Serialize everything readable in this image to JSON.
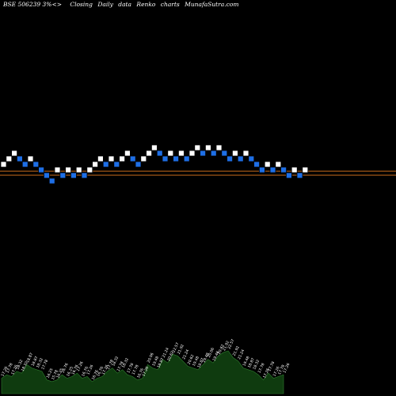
{
  "header": {
    "symbol": "BSE 506239",
    "box_size": "3%",
    "words": [
      "Closing",
      "Daily",
      "data",
      "Renko",
      "charts",
      "MunafaSutra.com"
    ]
  },
  "colors": {
    "background": "#000000",
    "up_brick": "#ffffff",
    "down_brick": "#1e6fe6",
    "brick_border": "#000000",
    "price_line": "#c46a1c",
    "volume_fill": "#0f3b0f",
    "volume_stroke": "#2e7d2e"
  },
  "chart_data": {
    "type": "renko",
    "box_size_percent": 3,
    "bricks": [
      {
        "dir": "up",
        "level": 0
      },
      {
        "dir": "up",
        "level": 1
      },
      {
        "dir": "up",
        "level": 2
      },
      {
        "dir": "down",
        "level": 1
      },
      {
        "dir": "down",
        "level": 0
      },
      {
        "dir": "up",
        "level": 1
      },
      {
        "dir": "down",
        "level": 0
      },
      {
        "dir": "down",
        "level": -1
      },
      {
        "dir": "down",
        "level": -2
      },
      {
        "dir": "down",
        "level": -3
      },
      {
        "dir": "up",
        "level": -1
      },
      {
        "dir": "down",
        "level": -2
      },
      {
        "dir": "up",
        "level": -1
      },
      {
        "dir": "down",
        "level": -2
      },
      {
        "dir": "up",
        "level": -1
      },
      {
        "dir": "down",
        "level": -2
      },
      {
        "dir": "up",
        "level": -1
      },
      {
        "dir": "up",
        "level": 0
      },
      {
        "dir": "up",
        "level": 1
      },
      {
        "dir": "down",
        "level": 0
      },
      {
        "dir": "up",
        "level": 1
      },
      {
        "dir": "down",
        "level": 0
      },
      {
        "dir": "up",
        "level": 1
      },
      {
        "dir": "up",
        "level": 2
      },
      {
        "dir": "down",
        "level": 1
      },
      {
        "dir": "down",
        "level": 0
      },
      {
        "dir": "up",
        "level": 1
      },
      {
        "dir": "up",
        "level": 2
      },
      {
        "dir": "up",
        "level": 3
      },
      {
        "dir": "down",
        "level": 2
      },
      {
        "dir": "down",
        "level": 1
      },
      {
        "dir": "up",
        "level": 2
      },
      {
        "dir": "down",
        "level": 1
      },
      {
        "dir": "up",
        "level": 2
      },
      {
        "dir": "down",
        "level": 1
      },
      {
        "dir": "up",
        "level": 2
      },
      {
        "dir": "up",
        "level": 3
      },
      {
        "dir": "down",
        "level": 2
      },
      {
        "dir": "up",
        "level": 3
      },
      {
        "dir": "down",
        "level": 2
      },
      {
        "dir": "up",
        "level": 3
      },
      {
        "dir": "down",
        "level": 2
      },
      {
        "dir": "down",
        "level": 1
      },
      {
        "dir": "up",
        "level": 2
      },
      {
        "dir": "down",
        "level": 1
      },
      {
        "dir": "up",
        "level": 2
      },
      {
        "dir": "down",
        "level": 1
      },
      {
        "dir": "down",
        "level": 0
      },
      {
        "dir": "down",
        "level": -1
      },
      {
        "dir": "up",
        "level": 0
      },
      {
        "dir": "down",
        "level": -1
      },
      {
        "dir": "up",
        "level": 0
      },
      {
        "dir": "down",
        "level": -1
      },
      {
        "dir": "down",
        "level": -2
      },
      {
        "dir": "up",
        "level": -1
      },
      {
        "dir": "down",
        "level": -2
      },
      {
        "dir": "up",
        "level": -1
      }
    ],
    "price_line_level": -1.3,
    "volume": [
      18,
      22,
      20,
      26,
      24,
      34,
      30,
      28,
      26,
      16,
      14,
      16,
      22,
      18,
      20,
      24,
      18,
      20,
      14,
      18,
      20,
      26,
      30,
      24,
      28,
      22,
      20,
      16,
      18,
      34,
      30,
      28,
      40,
      36,
      46,
      44,
      38,
      32,
      30,
      28,
      34,
      40,
      36,
      44,
      48,
      50,
      42,
      38,
      30,
      28,
      26,
      22,
      16,
      24,
      18,
      20,
      22
    ],
    "volume_labels": [
      "17.26",
      "17.78",
      "17.26",
      "18.32",
      "18.32",
      "18.87",
      "18.87",
      "18.32",
      "17.78",
      "16.25",
      "15.78",
      "16.25",
      "16.76",
      "16.25",
      "16.76",
      "17.26",
      "16.76",
      "17.26",
      "16.76",
      "16.76",
      "17.26",
      "17.78",
      "18.32",
      "17.78",
      "18.32",
      "17.78",
      "17.78",
      "16.76",
      "17.26",
      "20.06",
      "19.48",
      "18.87",
      "21.24",
      "20.62",
      "22.57",
      "21.92",
      "21.24",
      "20.62",
      "19.48",
      "18.87",
      "19.48",
      "20.06",
      "19.48",
      "20.62",
      "21.92",
      "22.57",
      "21.92",
      "21.24",
      "19.48",
      "18.87",
      "18.32",
      "17.78",
      "17.26",
      "17.78",
      "17.26",
      "17.78",
      "17.26"
    ]
  }
}
